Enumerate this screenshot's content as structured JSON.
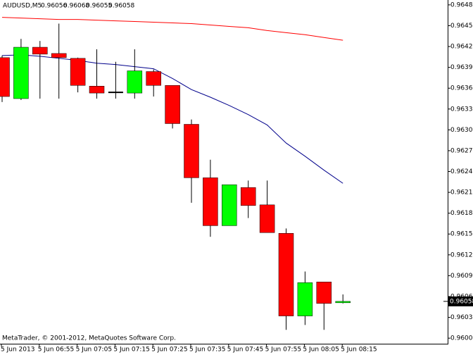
{
  "chart_data": {
    "type": "candlestick",
    "symbol": "AUDUSD,M5",
    "copyright": "MetaTrader, © 2001-2012, MetaQuotes Software Corp.",
    "categories": [
      "5 Jun 2013",
      null,
      "5 Jun 06:55",
      null,
      "5 Jun 07:05",
      null,
      "5 Jun 07:15",
      null,
      "5 Jun 07:25",
      null,
      "5 Jun 07:35",
      null,
      "5 Jun 07:45",
      null,
      "5 Jun 07:55",
      null,
      "5 Jun 08:05",
      null,
      "5 Jun 08:15"
    ],
    "open": [
      0.96409,
      0.9635,
      0.96424,
      0.96415,
      0.96408,
      0.96368,
      0.96359,
      0.96358,
      0.96389,
      0.96369,
      0.96313,
      0.96236,
      0.96167,
      0.96222,
      0.96197,
      0.96156,
      0.96037,
      0.96086,
      0.96056
    ],
    "high": [
      0.96412,
      0.96436,
      0.96433,
      0.96458,
      0.96409,
      0.96421,
      0.96403,
      0.96421,
      0.96392,
      0.96369,
      0.9632,
      0.96262,
      0.96226,
      0.96232,
      0.96232,
      0.96163,
      0.96101,
      0.96086,
      0.96068
    ],
    "low": [
      0.96345,
      0.96348,
      0.9635,
      0.9635,
      0.96359,
      0.9635,
      0.9635,
      0.9635,
      0.96353,
      0.96307,
      0.962,
      0.96151,
      0.96167,
      0.96178,
      0.96157,
      0.96017,
      0.96024,
      0.96017,
      0.96055
    ],
    "close": [
      0.96353,
      0.96424,
      0.96414,
      0.96409,
      0.96369,
      0.96358,
      0.96359,
      0.9639,
      0.96369,
      0.96314,
      0.96236,
      0.96167,
      0.96226,
      0.96196,
      0.96157,
      0.96037,
      0.96085,
      0.96055,
      0.96058
    ],
    "up_color": "#00ff00",
    "down_color": "#ff0000",
    "lines": [
      {
        "color": "#ff0000",
        "values": [
          0.96467,
          0.96466,
          0.96465,
          0.96464,
          0.96464,
          0.96463,
          0.96462,
          0.96461,
          0.9646,
          0.96459,
          0.96458,
          0.96456,
          0.96454,
          0.96452,
          0.96448,
          0.96445,
          0.96442,
          0.96438,
          0.96434
        ]
      },
      {
        "color": "#00008b",
        "values": [
          0.96412,
          0.96413,
          0.96411,
          0.96408,
          0.96405,
          0.96401,
          0.96399,
          0.96396,
          0.96393,
          0.96379,
          0.96363,
          0.96352,
          0.9634,
          0.96327,
          0.96312,
          0.96286,
          0.96267,
          0.96247,
          0.96228
        ]
      }
    ],
    "ylim": [
      0.95997,
      0.96492
    ],
    "yticks": [
      0.96485,
      0.96455,
      0.96425,
      0.96395,
      0.96365,
      0.96335,
      0.96305,
      0.96275,
      0.96245,
      0.96215,
      0.96185,
      0.96155,
      0.96125,
      0.96095,
      0.96065,
      0.96035,
      0.96005
    ]
  }
}
